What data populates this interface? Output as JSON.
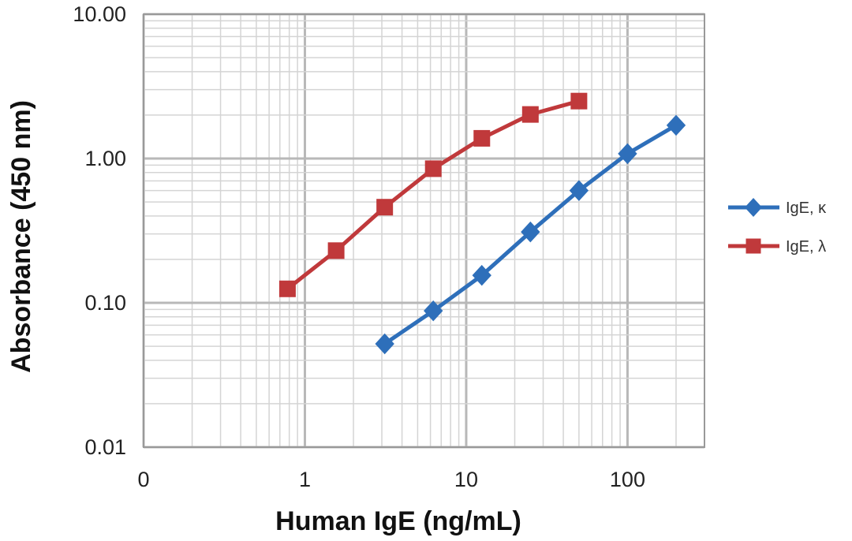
{
  "chart_data": {
    "type": "line",
    "title": "",
    "xlabel": "Human IgE (ng/mL)",
    "ylabel": "Absorbance  (450 nm)",
    "x_scale": "log",
    "y_scale": "log",
    "xlim": [
      0.1,
      300
    ],
    "ylim": [
      0.01,
      10
    ],
    "x_tick_labels": [
      "0",
      "1",
      "10",
      "100"
    ],
    "x_tick_values": [
      0.1,
      1,
      10,
      100
    ],
    "y_tick_labels": [
      "10.00",
      "1.00",
      "0.10",
      "0.01"
    ],
    "y_tick_values": [
      10,
      1,
      0.1,
      0.01
    ],
    "grid": true,
    "legend_position": "right",
    "series": [
      {
        "name": "IgE, κ",
        "color": "#2e6fba",
        "marker": "diamond",
        "x": [
          3.125,
          6.25,
          12.5,
          25,
          50,
          100,
          200
        ],
        "y": [
          0.052,
          0.088,
          0.155,
          0.31,
          0.6,
          1.08,
          1.7
        ]
      },
      {
        "name": "IgE, λ",
        "color": "#c0393b",
        "marker": "square",
        "x": [
          0.78,
          1.5625,
          3.125,
          6.25,
          12.5,
          25,
          50
        ],
        "y": [
          0.125,
          0.23,
          0.46,
          0.85,
          1.38,
          2.02,
          2.5
        ]
      }
    ]
  }
}
